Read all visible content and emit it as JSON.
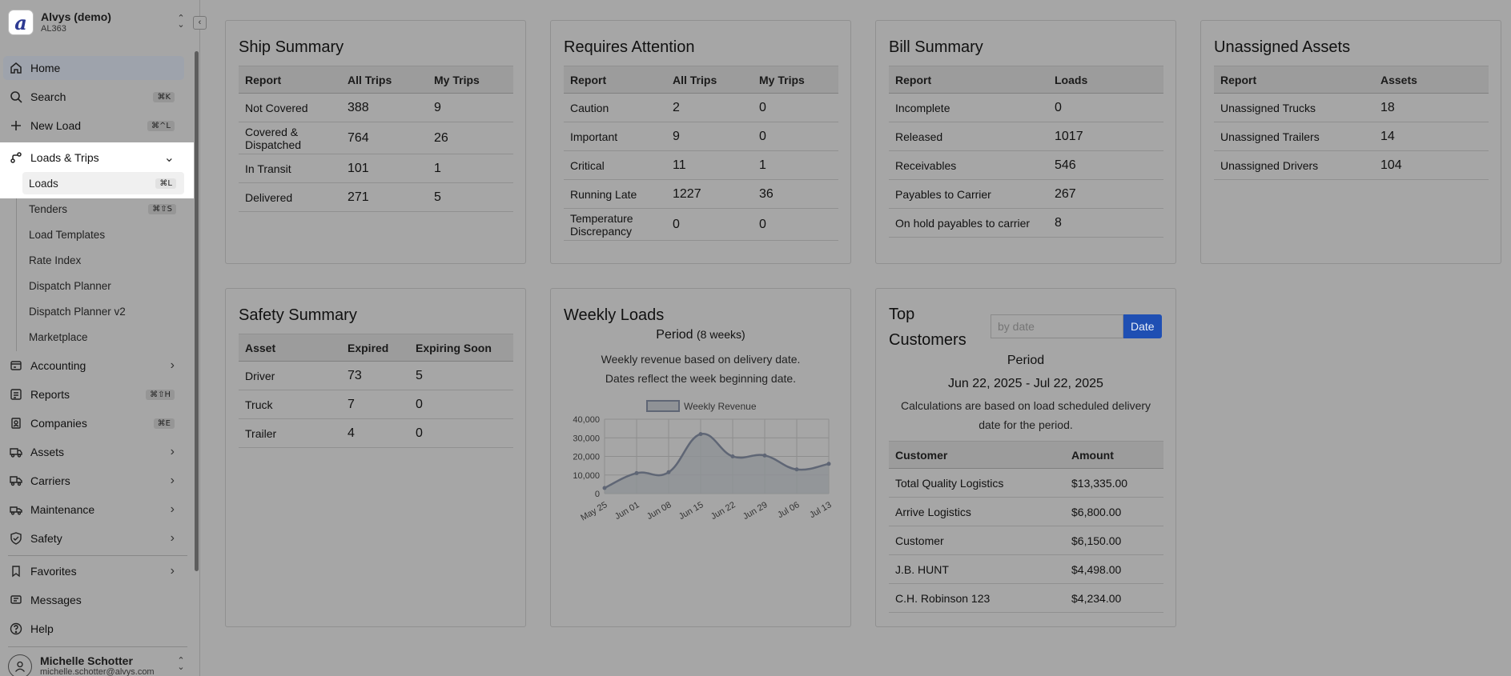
{
  "org": {
    "name": "Alvys (demo)",
    "code": "AL363",
    "logo_letter": "a"
  },
  "sidebar": {
    "items": [
      {
        "key": "home",
        "label": "Home",
        "icon": "home-icon"
      },
      {
        "key": "search",
        "label": "Search",
        "icon": "search-icon",
        "kbd": "⌘K"
      },
      {
        "key": "new_load",
        "label": "New Load",
        "icon": "plus-icon",
        "kbd": "⌘^L"
      },
      {
        "key": "loads_trips",
        "label": "Loads & Trips",
        "icon": "route-icon"
      },
      {
        "key": "accounting",
        "label": "Accounting",
        "icon": "bank-icon"
      },
      {
        "key": "reports",
        "label": "Reports",
        "icon": "report-icon",
        "kbd": "⌘⇧H"
      },
      {
        "key": "companies",
        "label": "Companies",
        "icon": "building-icon",
        "kbd": "⌘E"
      },
      {
        "key": "assets",
        "label": "Assets",
        "icon": "truck-icon"
      },
      {
        "key": "carriers",
        "label": "Carriers",
        "icon": "carrier-icon"
      },
      {
        "key": "maintenance",
        "label": "Maintenance",
        "icon": "wrench-icon"
      },
      {
        "key": "safety",
        "label": "Safety",
        "icon": "shield-icon"
      },
      {
        "key": "favorites",
        "label": "Favorites",
        "icon": "bookmark-icon"
      },
      {
        "key": "messages",
        "label": "Messages",
        "icon": "message-icon"
      },
      {
        "key": "help",
        "label": "Help",
        "icon": "help-icon"
      }
    ],
    "sub_items": [
      {
        "label": "Loads",
        "kbd": "⌘L"
      },
      {
        "label": "Tenders",
        "kbd": "⌘⇧S"
      },
      {
        "label": "Load Templates"
      },
      {
        "label": "Rate Index"
      },
      {
        "label": "Dispatch Planner"
      },
      {
        "label": "Dispatch Planner v2"
      },
      {
        "label": "Marketplace"
      }
    ]
  },
  "user": {
    "name": "Michelle Schotter",
    "email": "michelle.schotter@alvys.com"
  },
  "ship_summary": {
    "title": "Ship Summary",
    "headers": [
      "Report",
      "All Trips",
      "My Trips"
    ],
    "rows": [
      [
        "Not Covered",
        "388",
        "9"
      ],
      [
        "Covered & Dispatched",
        "764",
        "26"
      ],
      [
        "In Transit",
        "101",
        "1"
      ],
      [
        "Delivered",
        "271",
        "5"
      ]
    ]
  },
  "requires_attention": {
    "title": "Requires Attention",
    "headers": [
      "Report",
      "All Trips",
      "My Trips"
    ],
    "rows": [
      [
        "Caution",
        "2",
        "0"
      ],
      [
        "Important",
        "9",
        "0"
      ],
      [
        "Critical",
        "11",
        "1"
      ],
      [
        "Running Late",
        "1227",
        "36"
      ],
      [
        "Temperature Discrepancy",
        "0",
        "0"
      ]
    ]
  },
  "bill_summary": {
    "title": "Bill Summary",
    "headers": [
      "Report",
      "Loads"
    ],
    "rows": [
      [
        "Incomplete",
        "0"
      ],
      [
        "Released",
        "1017"
      ],
      [
        "Receivables",
        "546"
      ],
      [
        "Payables to Carrier",
        "267"
      ],
      [
        "On hold payables to carrier",
        "8"
      ]
    ]
  },
  "unassigned_assets": {
    "title": "Unassigned Assets",
    "headers": [
      "Report",
      "Assets"
    ],
    "rows": [
      [
        "Unassigned Trucks",
        "18"
      ],
      [
        "Unassigned Trailers",
        "14"
      ],
      [
        "Unassigned Drivers",
        "104"
      ]
    ]
  },
  "safety_summary": {
    "title": "Safety Summary",
    "headers": [
      "Asset",
      "Expired",
      "Expiring Soon"
    ],
    "rows": [
      [
        "Driver",
        "73",
        "5"
      ],
      [
        "Truck",
        "7",
        "0"
      ],
      [
        "Trailer",
        "4",
        "0"
      ]
    ]
  },
  "weekly_loads": {
    "title": "Weekly Loads",
    "period_label": "Period",
    "period_weeks": "(8 weeks)",
    "desc1": "Weekly revenue based on delivery date.",
    "desc2": "Dates reflect the week beginning date."
  },
  "top_customers": {
    "title_line1": "Top",
    "title_line2": "Customers",
    "input_placeholder": "by date",
    "date_button": "Date",
    "period_label": "Period",
    "period_range": "Jun 22, 2025 - Jul 22, 2025",
    "note": "Calculations are based on load scheduled delivery date for the period.",
    "headers": [
      "Customer",
      "Amount"
    ],
    "rows": [
      [
        "Total Quality Logistics",
        "$13,335.00"
      ],
      [
        "Arrive Logistics",
        "$6,800.00"
      ],
      [
        "Customer",
        "$6,150.00"
      ],
      [
        "J.B. HUNT",
        "$4,498.00"
      ],
      [
        "C.H. Robinson 123",
        "$4,234.00"
      ]
    ]
  },
  "chart_data": {
    "type": "line",
    "title": "",
    "legend": "Weekly Revenue",
    "categories": [
      "May 25",
      "Jun 01",
      "Jun 08",
      "Jun 15",
      "Jun 22",
      "Jun 29",
      "Jul 06",
      "Jul 13"
    ],
    "series": [
      {
        "name": "Weekly Revenue",
        "values": [
          3000,
          11000,
          11500,
          32000,
          20000,
          20500,
          13000,
          16000
        ]
      }
    ],
    "yticks": [
      "40,000",
      "30,000",
      "20,000",
      "10,000",
      "0"
    ],
    "ylim": [
      0,
      40000
    ],
    "grid": true,
    "line_color": "#5f6675",
    "fill_color": "#8f9296"
  }
}
